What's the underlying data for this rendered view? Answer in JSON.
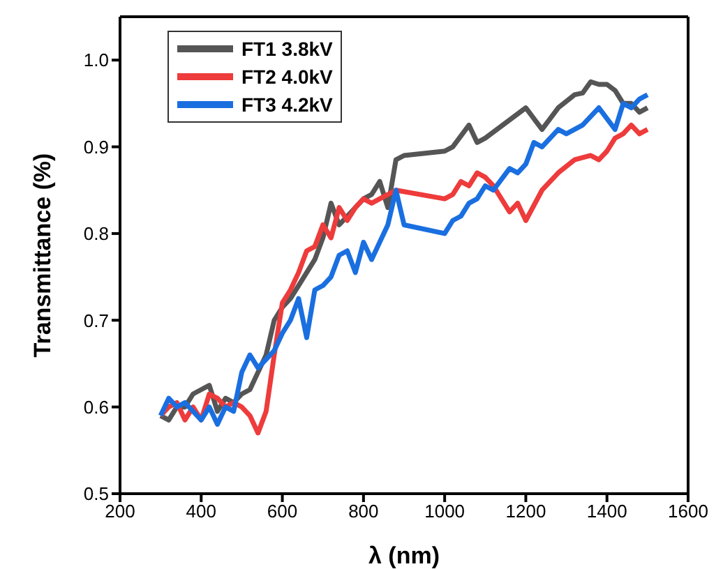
{
  "chart_data": {
    "type": "line",
    "xlabel": "λ (nm)",
    "ylabel": "Transmittance (%)",
    "xlim": [
      200,
      1600
    ],
    "xticks": [
      200,
      400,
      600,
      800,
      1000,
      1200,
      1400,
      1600
    ],
    "ylim": [
      0.5,
      1.05
    ],
    "yticks": [
      {
        "value": 0.5,
        "label": "0.5"
      },
      {
        "value": 0.6,
        "label": "0.6"
      },
      {
        "value": 0.7,
        "label": "0.7"
      },
      {
        "value": 0.8,
        "label": "0.8"
      },
      {
        "value": 0.9,
        "label": "0.9"
      },
      {
        "value": 1.0,
        "label": "1.0"
      }
    ],
    "grid": false,
    "legend": "top left",
    "marker": "none",
    "line_style": "solid",
    "series": [
      {
        "name": "FT1 3.8kV",
        "color": "#555555",
        "x": [
          300,
          320,
          340,
          360,
          380,
          400,
          420,
          440,
          460,
          480,
          500,
          520,
          540,
          560,
          580,
          600,
          620,
          640,
          660,
          680,
          700,
          720,
          740,
          760,
          780,
          800,
          820,
          840,
          860,
          880,
          900,
          1000,
          1020,
          1060,
          1080,
          1100,
          1200,
          1240,
          1280,
          1320,
          1340,
          1360,
          1380,
          1400,
          1420,
          1440,
          1460,
          1480,
          1500
        ],
        "values": [
          0.59,
          0.585,
          0.6,
          0.6,
          0.615,
          0.62,
          0.625,
          0.595,
          0.61,
          0.605,
          0.615,
          0.62,
          0.64,
          0.66,
          0.7,
          0.715,
          0.725,
          0.74,
          0.755,
          0.77,
          0.795,
          0.835,
          0.81,
          0.82,
          0.83,
          0.84,
          0.845,
          0.86,
          0.83,
          0.885,
          0.89,
          0.895,
          0.9,
          0.925,
          0.905,
          0.91,
          0.945,
          0.92,
          0.945,
          0.96,
          0.962,
          0.975,
          0.972,
          0.972,
          0.965,
          0.95,
          0.95,
          0.94,
          0.945
        ]
      },
      {
        "name": "FT2 4.0kV",
        "color": "#ee3b3b",
        "x": [
          300,
          320,
          340,
          360,
          380,
          400,
          420,
          440,
          460,
          480,
          500,
          520,
          540,
          560,
          580,
          600,
          620,
          640,
          660,
          680,
          700,
          720,
          740,
          760,
          780,
          800,
          820,
          840,
          880,
          1000,
          1020,
          1040,
          1060,
          1080,
          1100,
          1120,
          1160,
          1180,
          1200,
          1240,
          1280,
          1320,
          1360,
          1380,
          1400,
          1420,
          1440,
          1460,
          1480,
          1500
        ],
        "values": [
          0.59,
          0.6,
          0.605,
          0.585,
          0.6,
          0.585,
          0.615,
          0.61,
          0.6,
          0.605,
          0.6,
          0.59,
          0.57,
          0.595,
          0.66,
          0.72,
          0.735,
          0.755,
          0.78,
          0.785,
          0.81,
          0.795,
          0.83,
          0.815,
          0.83,
          0.84,
          0.835,
          0.84,
          0.85,
          0.84,
          0.845,
          0.86,
          0.855,
          0.87,
          0.865,
          0.855,
          0.825,
          0.835,
          0.815,
          0.85,
          0.87,
          0.885,
          0.89,
          0.885,
          0.895,
          0.91,
          0.915,
          0.925,
          0.915,
          0.92
        ]
      },
      {
        "name": "FT3 4.2kV",
        "color": "#1a6fe0",
        "x": [
          300,
          320,
          340,
          360,
          380,
          400,
          420,
          440,
          460,
          480,
          500,
          520,
          540,
          560,
          580,
          600,
          620,
          640,
          660,
          680,
          700,
          720,
          740,
          760,
          780,
          800,
          820,
          840,
          860,
          880,
          900,
          1000,
          1020,
          1040,
          1060,
          1080,
          1100,
          1120,
          1160,
          1180,
          1200,
          1220,
          1240,
          1280,
          1300,
          1340,
          1380,
          1420,
          1440,
          1460,
          1480,
          1500
        ],
        "values": [
          0.59,
          0.61,
          0.6,
          0.605,
          0.595,
          0.585,
          0.6,
          0.58,
          0.6,
          0.595,
          0.64,
          0.66,
          0.645,
          0.655,
          0.665,
          0.685,
          0.7,
          0.725,
          0.68,
          0.735,
          0.74,
          0.75,
          0.775,
          0.78,
          0.755,
          0.79,
          0.77,
          0.79,
          0.81,
          0.85,
          0.81,
          0.8,
          0.815,
          0.82,
          0.835,
          0.84,
          0.855,
          0.85,
          0.875,
          0.87,
          0.88,
          0.905,
          0.9,
          0.92,
          0.915,
          0.925,
          0.945,
          0.92,
          0.95,
          0.945,
          0.955,
          0.96
        ]
      }
    ]
  }
}
